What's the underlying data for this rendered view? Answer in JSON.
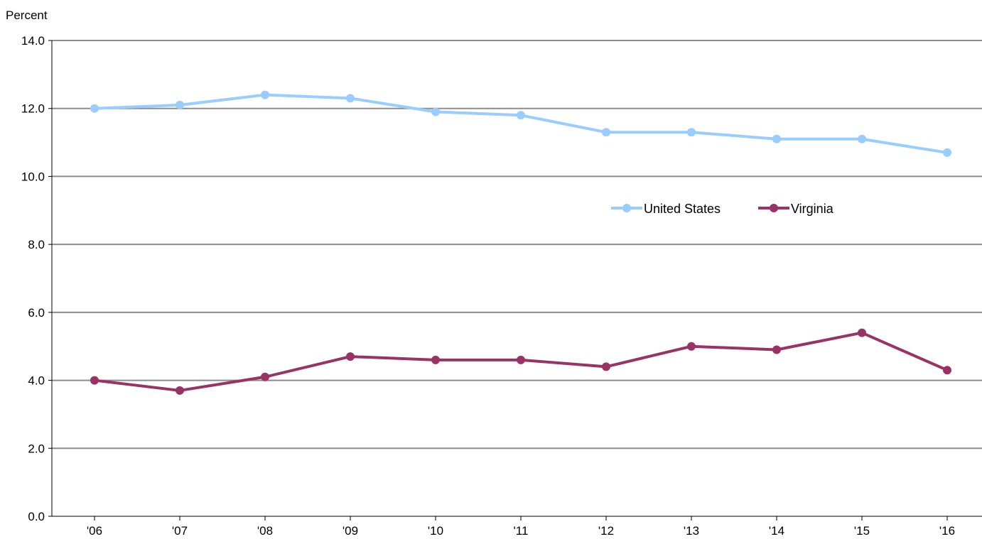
{
  "chart_data": {
    "type": "line",
    "title": "",
    "xlabel": "",
    "ylabel": "Percent",
    "categories": [
      "'06",
      "'07",
      "'08",
      "'09",
      "'10",
      "'11",
      "'12",
      "'13",
      "'14",
      "'15",
      "'16"
    ],
    "y_ticks": [
      "0.0",
      "2.0",
      "4.0",
      "6.0",
      "8.0",
      "10.0",
      "12.0",
      "14.0"
    ],
    "ylim": [
      0,
      14
    ],
    "grid": true,
    "legend_position": "middle-right",
    "series": [
      {
        "name": "United States",
        "color": "#99ccff",
        "values": [
          12.0,
          12.1,
          12.4,
          12.3,
          11.9,
          11.8,
          11.3,
          11.3,
          11.1,
          11.1,
          10.7
        ]
      },
      {
        "name": "Virginia",
        "color": "#993366",
        "values": [
          4.0,
          3.7,
          4.1,
          4.7,
          4.6,
          4.6,
          4.4,
          5.0,
          4.9,
          5.4,
          4.3
        ]
      }
    ]
  }
}
